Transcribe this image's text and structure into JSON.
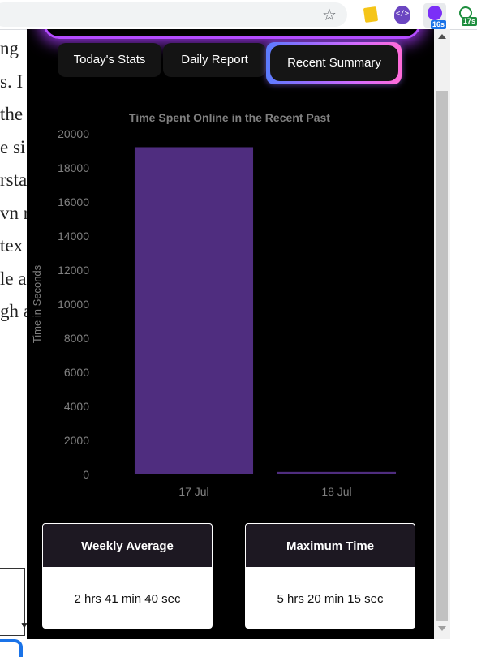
{
  "browser": {
    "icons": [
      "star-icon",
      "sticky-note-icon",
      "code-head-icon",
      "timer-extension-icon",
      "clock-extension-icon"
    ],
    "badges": {
      "timer": "16s",
      "clock": "17s"
    }
  },
  "background_page": {
    "text_fragments": [
      "ng",
      "s. I",
      "the",
      "e si",
      "rsta",
      "vn r",
      "tex",
      "le a",
      "gh a"
    ]
  },
  "popup": {
    "tabs": [
      {
        "label": "Today's Stats",
        "active": false
      },
      {
        "label": "Daily Report",
        "active": false
      },
      {
        "label": "Recent Summary",
        "active": true
      }
    ],
    "cards": {
      "weekly": {
        "title": "Weekly Average",
        "value": "2 hrs 41 min 40 sec"
      },
      "maximum": {
        "title": "Maximum Time",
        "value": "5 hrs 20 min 15 sec"
      }
    }
  },
  "chart_data": {
    "type": "bar",
    "title": "Time Spent Online in the Recent Past",
    "xlabel": "",
    "ylabel": "Time in Seconds",
    "categories": [
      "17 Jul",
      "18 Jul"
    ],
    "values": [
      19215,
      150
    ],
    "ylim": [
      0,
      20000
    ],
    "yticks": [
      0,
      2000,
      4000,
      6000,
      8000,
      10000,
      12000,
      14000,
      16000,
      18000,
      20000
    ],
    "grid": false,
    "legend": "none",
    "bar_color": "#4f2d7f",
    "text_color": "#808080"
  },
  "colors": {
    "popup_bg": "#000000",
    "card_header": "#1d1822",
    "accent_glow": "#b44cff"
  }
}
